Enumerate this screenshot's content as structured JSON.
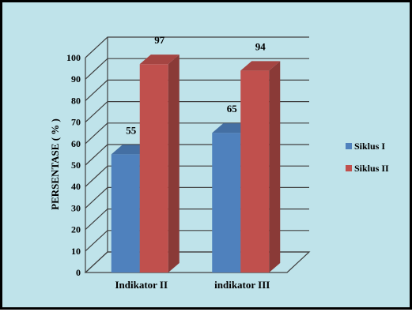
{
  "chart_data": {
    "type": "bar",
    "title": "",
    "xlabel": "",
    "ylabel": "PERSENTASE ( % )",
    "categories": [
      "Indikator II",
      "indikator III"
    ],
    "series": [
      {
        "name": "Siklus I",
        "values": [
          55,
          65
        ],
        "color": "#4f81bd"
      },
      {
        "name": "Siklus II",
        "values": [
          97,
          94
        ],
        "color": "#c0504d"
      }
    ],
    "ylim": [
      0,
      100
    ],
    "yticks": [
      0,
      10,
      20,
      30,
      40,
      50,
      60,
      70,
      80,
      90,
      100
    ],
    "grid": true,
    "legend_position": "right",
    "style": "3d-column",
    "background_color": "#bfe3ea"
  }
}
